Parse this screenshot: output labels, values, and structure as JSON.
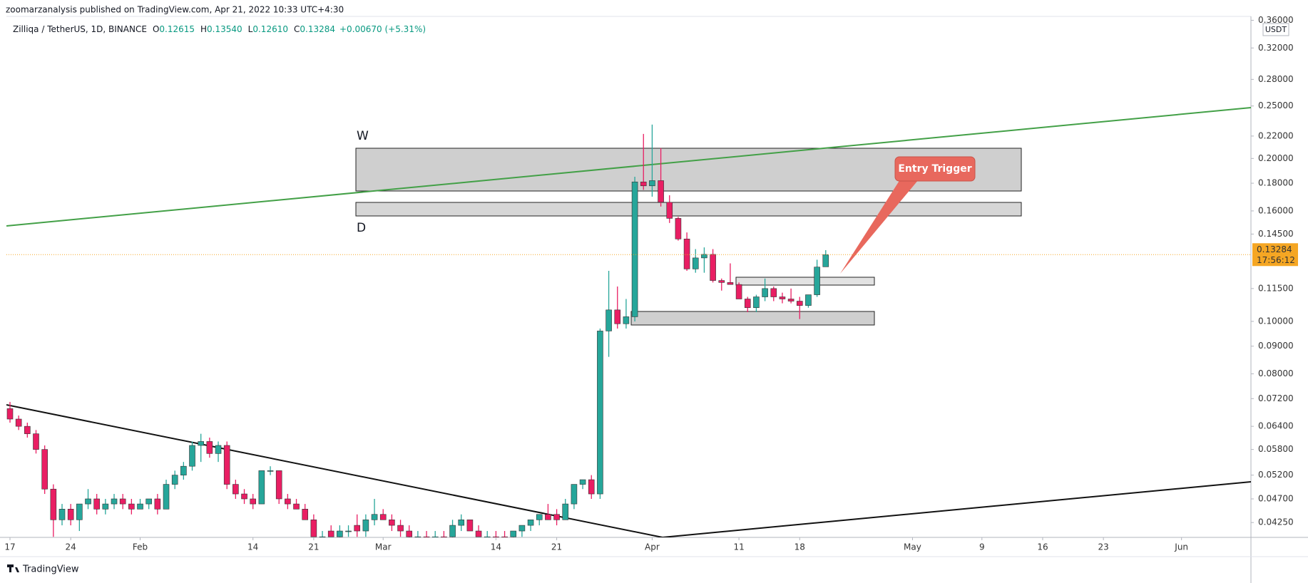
{
  "header": "zoomarzanalysis published on TradingView.com, Apr 21, 2022 10:33 UTC+4:30",
  "footer": "TradingView",
  "chart_data": {
    "type": "candlestick",
    "legend": {
      "symbol": "Zilliqa / TetherUS, 1D, BINANCE",
      "items": [
        {
          "label": "O",
          "value": "0.12615"
        },
        {
          "label": "H",
          "value": "0.13540"
        },
        {
          "label": "L",
          "value": "0.12610"
        },
        {
          "label": "C",
          "value": "0.13284"
        }
      ],
      "change": "+0.00670 (+5.31%)"
    },
    "currency": "USDT",
    "countdown": "17:56:12",
    "annotations": {
      "w": "W",
      "d": "D",
      "entry": "Entry Trigger"
    },
    "up_color": "#26a69a",
    "down_color": "#e91e63",
    "last_price_color": "#f5a623",
    "log_scale": true,
    "grid": false,
    "x": [
      "Jan 17",
      "Jan 18",
      "Jan 19",
      "Jan 20",
      "Jan 21",
      "Jan 22",
      "Jan 23",
      "Jan 24",
      "Jan 25",
      "Jan 26",
      "Jan 27",
      "Jan 28",
      "Jan 29",
      "Jan 30",
      "Jan 31",
      "Feb 1",
      "Feb 2",
      "Feb 3",
      "Feb 4",
      "Feb 5",
      "Feb 6",
      "Feb 7",
      "Feb 8",
      "Feb 9",
      "Feb 10",
      "Feb 11",
      "Feb 12",
      "Feb 13",
      "Feb 14",
      "Feb 15",
      "Feb 16",
      "Feb 17",
      "Feb 18",
      "Feb 19",
      "Feb 20",
      "Feb 21",
      "Feb 22",
      "Feb 23",
      "Feb 24",
      "Feb 25",
      "Feb 26",
      "Feb 27",
      "Feb 28",
      "Mar 1",
      "Mar 2",
      "Mar 3",
      "Mar 4",
      "Mar 5",
      "Mar 6",
      "Mar 7",
      "Mar 8",
      "Mar 9",
      "Mar 10",
      "Mar 11",
      "Mar 12",
      "Mar 13",
      "Mar 14",
      "Mar 15",
      "Mar 16",
      "Mar 17",
      "Mar 18",
      "Mar 19",
      "Mar 20",
      "Mar 21",
      "Mar 22",
      "Mar 23",
      "Mar 24",
      "Mar 25",
      "Mar 26",
      "Mar 27",
      "Mar 28",
      "Mar 29",
      "Mar 30",
      "Mar 31",
      "Apr 1",
      "Apr 2",
      "Apr 3",
      "Apr 4",
      "Apr 5",
      "Apr 6",
      "Apr 7",
      "Apr 8",
      "Apr 9",
      "Apr 10",
      "Apr 11",
      "Apr 12",
      "Apr 13",
      "Apr 14",
      "Apr 15",
      "Apr 16",
      "Apr 17",
      "Apr 18",
      "Apr 19",
      "Apr 20",
      "Apr 21"
    ],
    "open": [
      0.069,
      0.066,
      0.064,
      0.062,
      0.058,
      0.049,
      0.043,
      0.045,
      0.043,
      0.046,
      0.047,
      0.045,
      0.046,
      0.047,
      0.046,
      0.045,
      0.046,
      0.047,
      0.045,
      0.05,
      0.052,
      0.054,
      0.059,
      0.06,
      0.057,
      0.059,
      0.05,
      0.048,
      0.047,
      0.046,
      0.053,
      0.053,
      0.047,
      0.046,
      0.045,
      0.043,
      0.04,
      0.041,
      0.04,
      0.041,
      0.042,
      0.041,
      0.043,
      0.044,
      0.043,
      0.042,
      0.041,
      0.04,
      0.04,
      0.0395,
      0.04,
      0.04,
      0.042,
      0.043,
      0.041,
      0.0395,
      0.04,
      0.04,
      0.04,
      0.041,
      0.042,
      0.043,
      0.044,
      0.044,
      0.043,
      0.046,
      0.05,
      0.051,
      0.048,
      0.096,
      0.105,
      0.099,
      0.102,
      0.181,
      0.178,
      0.182,
      0.166,
      0.155,
      0.142,
      0.125,
      0.131,
      0.133,
      0.119,
      0.118,
      0.117,
      0.11,
      0.106,
      0.111,
      0.115,
      0.111,
      0.11,
      0.109,
      0.107,
      0.112,
      0.12615
    ],
    "high": [
      0.071,
      0.067,
      0.065,
      0.063,
      0.059,
      0.05,
      0.046,
      0.046,
      0.046,
      0.049,
      0.048,
      0.047,
      0.048,
      0.048,
      0.047,
      0.047,
      0.047,
      0.048,
      0.051,
      0.053,
      0.055,
      0.06,
      0.062,
      0.061,
      0.06,
      0.06,
      0.051,
      0.049,
      0.048,
      0.053,
      0.054,
      0.053,
      0.048,
      0.047,
      0.046,
      0.044,
      0.041,
      0.042,
      0.042,
      0.042,
      0.044,
      0.044,
      0.047,
      0.045,
      0.044,
      0.043,
      0.042,
      0.041,
      0.041,
      0.041,
      0.041,
      0.043,
      0.044,
      0.043,
      0.042,
      0.041,
      0.041,
      0.041,
      0.041,
      0.042,
      0.043,
      0.044,
      0.046,
      0.045,
      0.047,
      0.05,
      0.051,
      0.052,
      0.097,
      0.124,
      0.116,
      0.11,
      0.185,
      0.222,
      0.231,
      0.209,
      0.171,
      0.156,
      0.146,
      0.136,
      0.137,
      0.136,
      0.12,
      0.128,
      0.118,
      0.111,
      0.112,
      0.12,
      0.116,
      0.113,
      0.115,
      0.111,
      0.112,
      0.13,
      0.1354
    ],
    "low": [
      0.065,
      0.063,
      0.061,
      0.057,
      0.048,
      0.04,
      0.042,
      0.042,
      0.041,
      0.045,
      0.044,
      0.044,
      0.045,
      0.045,
      0.044,
      0.045,
      0.045,
      0.044,
      0.045,
      0.049,
      0.051,
      0.053,
      0.055,
      0.056,
      0.055,
      0.049,
      0.047,
      0.046,
      0.045,
      0.046,
      0.052,
      0.046,
      0.045,
      0.045,
      0.043,
      0.04,
      0.039,
      0.04,
      0.039,
      0.04,
      0.04,
      0.04,
      0.042,
      0.043,
      0.041,
      0.04,
      0.039,
      0.039,
      0.039,
      0.039,
      0.038,
      0.039,
      0.041,
      0.041,
      0.04,
      0.039,
      0.039,
      0.039,
      0.039,
      0.04,
      0.041,
      0.042,
      0.043,
      0.042,
      0.043,
      0.045,
      0.049,
      0.047,
      0.047,
      0.086,
      0.097,
      0.097,
      0.1,
      0.175,
      0.17,
      0.163,
      0.152,
      0.141,
      0.124,
      0.123,
      0.123,
      0.118,
      0.114,
      0.117,
      0.11,
      0.104,
      0.104,
      0.109,
      0.109,
      0.108,
      0.108,
      0.101,
      0.106,
      0.111,
      0.1261
    ],
    "close": [
      0.066,
      0.064,
      0.062,
      0.058,
      0.049,
      0.043,
      0.045,
      0.043,
      0.046,
      0.047,
      0.045,
      0.046,
      0.047,
      0.046,
      0.045,
      0.046,
      0.047,
      0.045,
      0.05,
      0.052,
      0.054,
      0.059,
      0.06,
      0.057,
      0.059,
      0.05,
      0.048,
      0.047,
      0.046,
      0.053,
      0.053,
      0.047,
      0.046,
      0.045,
      0.043,
      0.04,
      0.04,
      0.04,
      0.041,
      0.041,
      0.041,
      0.043,
      0.044,
      0.043,
      0.042,
      0.041,
      0.04,
      0.04,
      0.0395,
      0.04,
      0.039,
      0.042,
      0.043,
      0.041,
      0.04,
      0.04,
      0.0395,
      0.0395,
      0.041,
      0.042,
      0.043,
      0.044,
      0.043,
      0.043,
      0.046,
      0.05,
      0.051,
      0.048,
      0.096,
      0.105,
      0.099,
      0.102,
      0.181,
      0.178,
      0.182,
      0.166,
      0.155,
      0.142,
      0.125,
      0.131,
      0.133,
      0.119,
      0.118,
      0.117,
      0.11,
      0.106,
      0.111,
      0.115,
      0.111,
      0.11,
      0.109,
      0.107,
      0.112,
      0.126,
      0.13284
    ],
    "xlim": [
      "Jan 17",
      "Jun 9"
    ],
    "xticks": [
      {
        "value": "Jan 17",
        "label": "17"
      },
      {
        "value": "Jan 24",
        "label": "24"
      },
      {
        "value": "Feb 1",
        "label": "Feb"
      },
      {
        "value": "Feb 14",
        "label": "14"
      },
      {
        "value": "Feb 21",
        "label": "21"
      },
      {
        "value": "Mar 1",
        "label": "Mar"
      },
      {
        "value": "Mar 14",
        "label": "14"
      },
      {
        "value": "Mar 21",
        "label": "21"
      },
      {
        "value": "Apr 1",
        "label": "Apr"
      },
      {
        "value": "Apr 11",
        "label": "11"
      },
      {
        "value": "Apr 18",
        "label": "18"
      },
      {
        "value": "May 1",
        "label": "May"
      },
      {
        "value": "May 9",
        "label": "9"
      },
      {
        "value": "May 16",
        "label": "16"
      },
      {
        "value": "May 23",
        "label": "23"
      },
      {
        "value": "Jun 1",
        "label": "Jun"
      }
    ],
    "ylim": [
      0.0399,
      0.366
    ],
    "yticks": [
      {
        "value": 0.36,
        "label": "0.36000"
      },
      {
        "value": 0.32,
        "label": "0.32000"
      },
      {
        "value": 0.28,
        "label": "0.28000"
      },
      {
        "value": 0.25,
        "label": "0.25000"
      },
      {
        "value": 0.22,
        "label": "0.22000"
      },
      {
        "value": 0.2,
        "label": "0.20000"
      },
      {
        "value": 0.18,
        "label": "0.18000"
      },
      {
        "value": 0.16,
        "label": "0.16000"
      },
      {
        "value": 0.145,
        "label": "0.14500"
      },
      {
        "value": 0.115,
        "label": "0.11500"
      },
      {
        "value": 0.1,
        "label": "0.10000"
      },
      {
        "value": 0.09,
        "label": "0.09000"
      },
      {
        "value": 0.08,
        "label": "0.08000"
      },
      {
        "value": 0.072,
        "label": "0.07200"
      },
      {
        "value": 0.064,
        "label": "0.06400"
      },
      {
        "value": 0.058,
        "label": "0.05800"
      },
      {
        "value": 0.052,
        "label": "0.05200"
      },
      {
        "value": 0.047,
        "label": "0.04700"
      },
      {
        "value": 0.0425,
        "label": "0.04250"
      }
    ]
  }
}
